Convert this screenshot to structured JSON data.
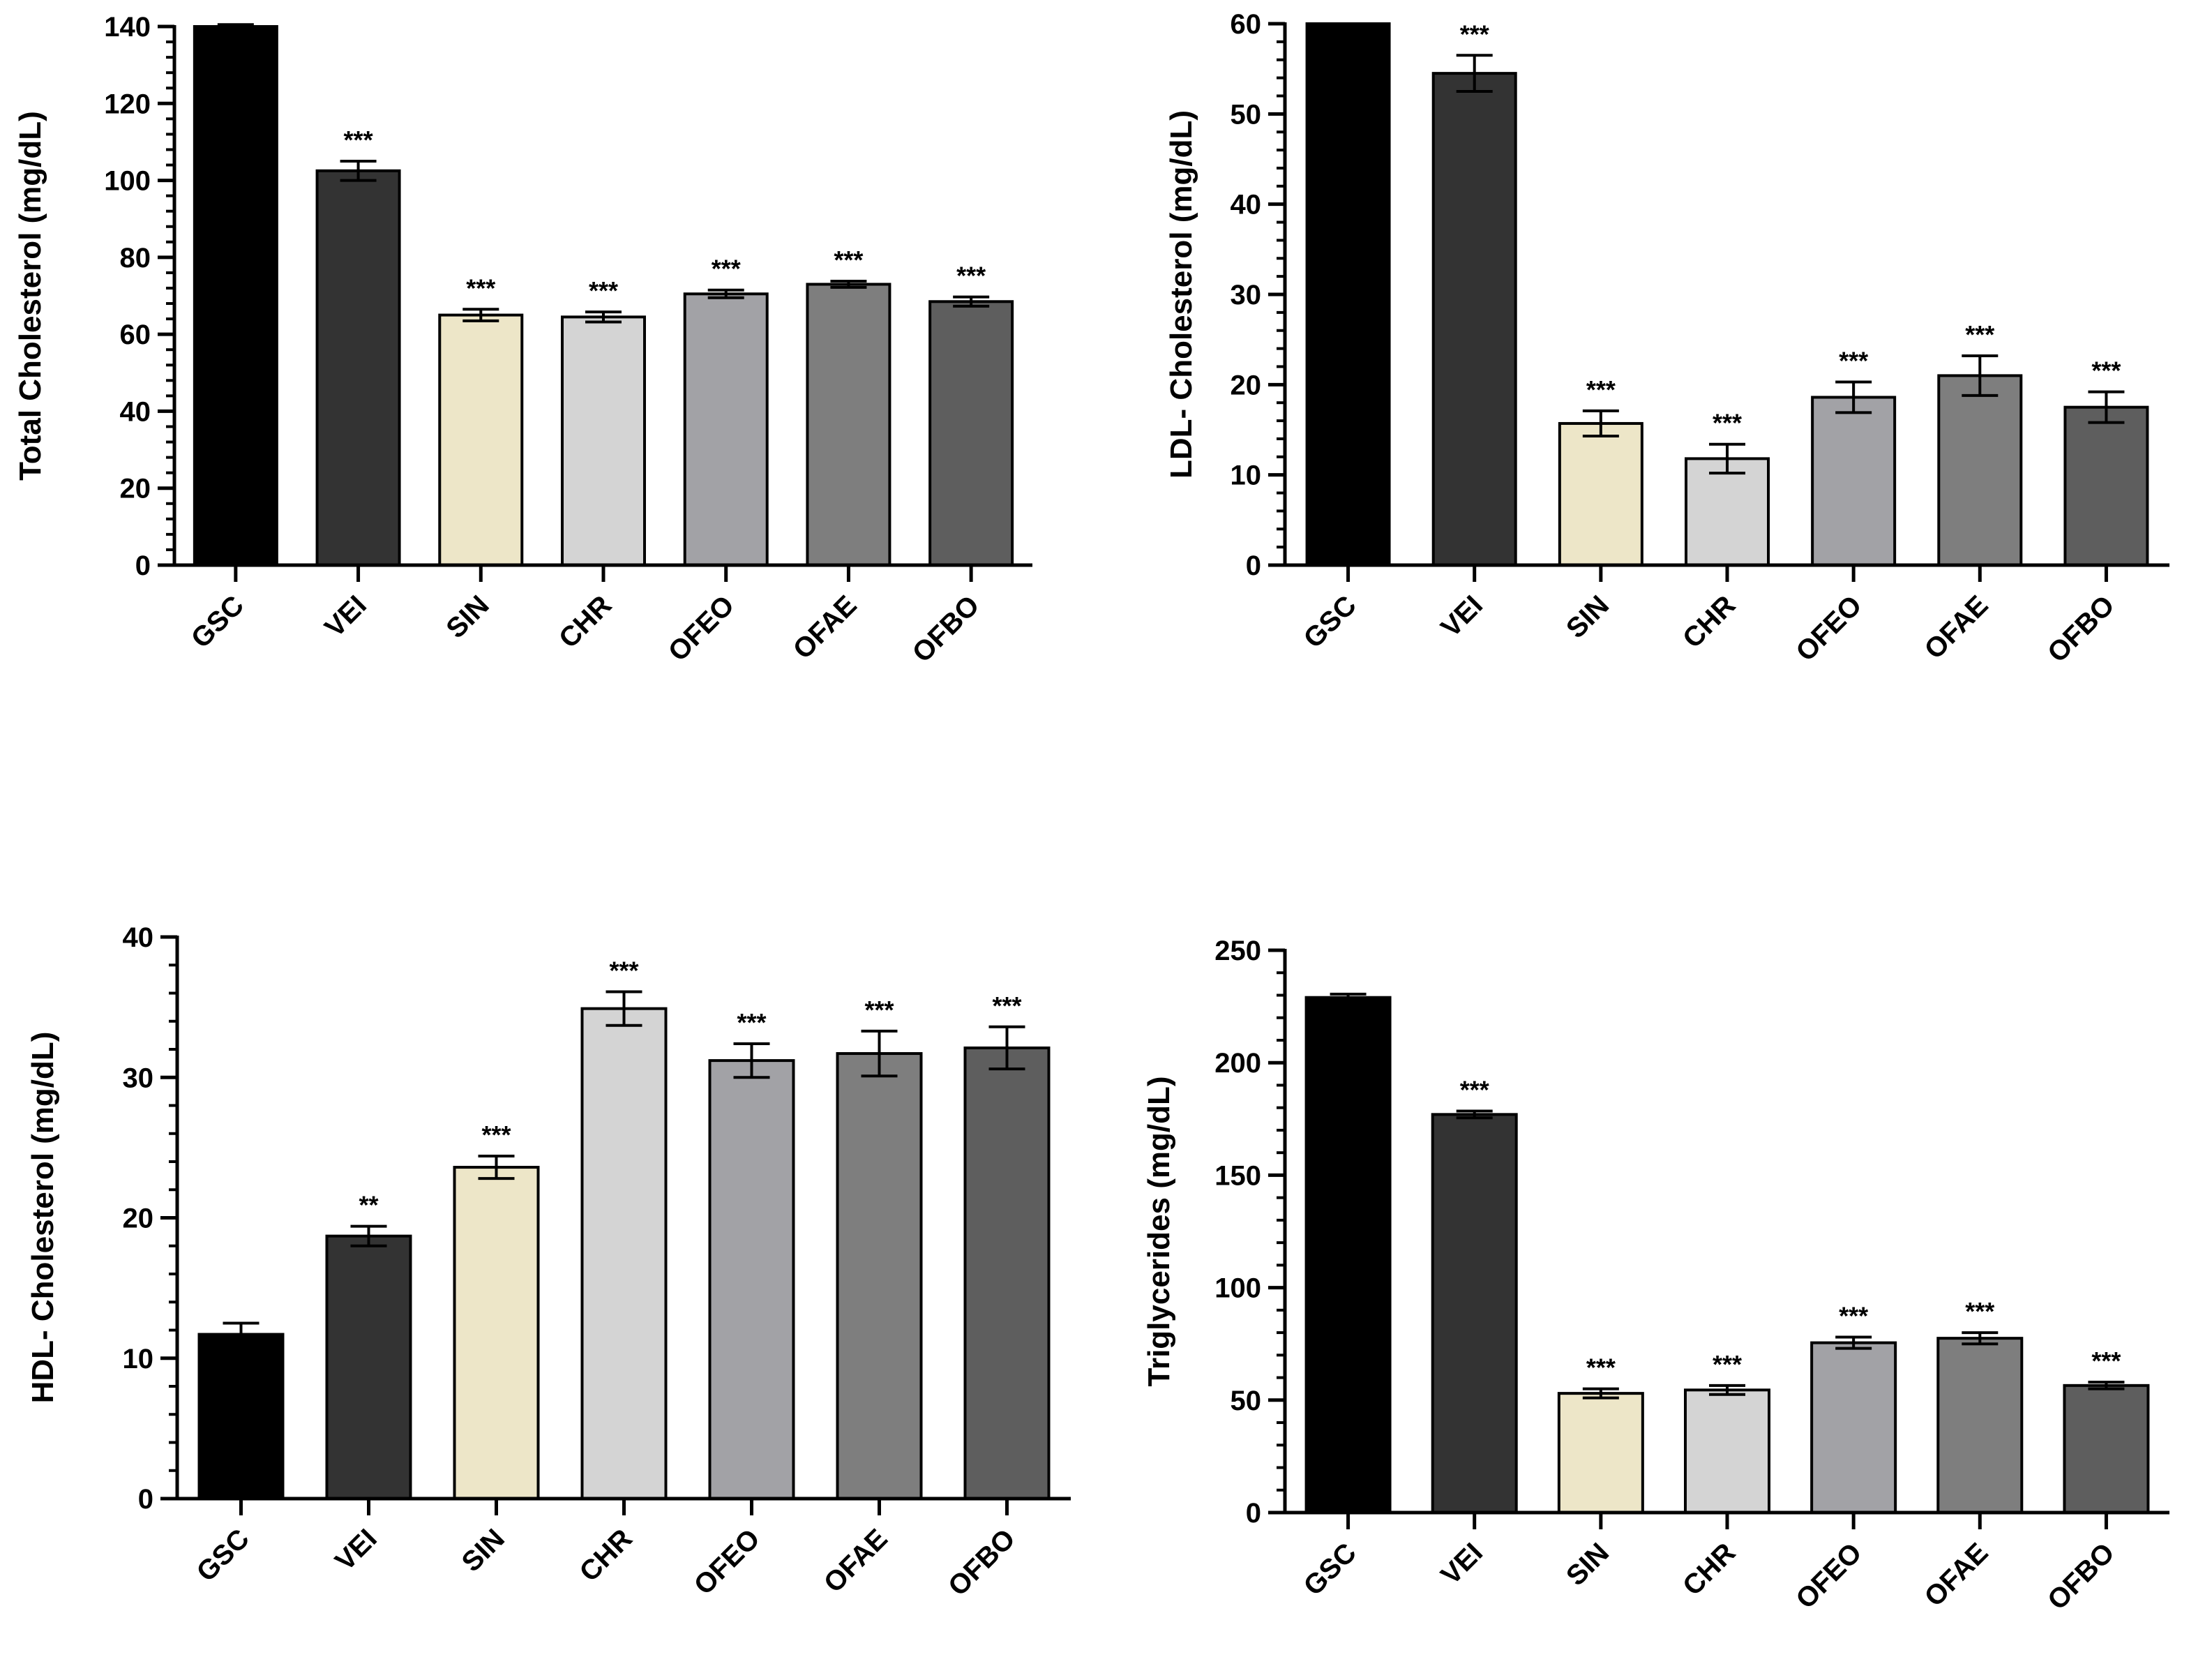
{
  "colors": {
    "GSC": "#000000",
    "VEI": "#333333",
    "SIN": "#ede6c8",
    "CHR": "#d4d4d4",
    "OFEO": "#a2a2a6",
    "OFAE": "#7e7e7e",
    "OFBO": "#5e5e5e"
  },
  "chart_data": [
    {
      "type": "bar",
      "title": "",
      "xlabel": "",
      "ylabel": "Total Cholesterol (mg/dL)",
      "ylim": [
        0,
        140
      ],
      "yticks": [
        0,
        20,
        40,
        60,
        80,
        100,
        120,
        140
      ],
      "categories": [
        "GSC",
        "VEI",
        "SIN",
        "CHR",
        "OFEO",
        "OFAE",
        "OFBO"
      ],
      "values": [
        140,
        102.5,
        65,
        64.5,
        70.5,
        73,
        68.5
      ],
      "errors": [
        0.5,
        2.5,
        1.5,
        1.3,
        1.0,
        0.8,
        1.2
      ],
      "significance": [
        "",
        "***",
        "***",
        "***",
        "***",
        "***",
        "***"
      ],
      "grid": false,
      "legend": "none"
    },
    {
      "type": "bar",
      "title": "",
      "xlabel": "",
      "ylabel": "LDL- Cholesterol (mg/dL)",
      "ylim": [
        0,
        60
      ],
      "yticks": [
        0,
        10,
        20,
        30,
        40,
        50,
        60
      ],
      "categories": [
        "GSC",
        "VEI",
        "SIN",
        "CHR",
        "OFEO",
        "OFAE",
        "OFBO"
      ],
      "values": [
        60,
        54.5,
        15.7,
        11.8,
        18.6,
        21,
        17.5
      ],
      "errors": [
        0,
        2,
        1.4,
        1.6,
        1.7,
        2.2,
        1.7
      ],
      "significance": [
        "",
        "***",
        "***",
        "***",
        "***",
        "***",
        "***"
      ],
      "grid": false,
      "legend": "none"
    },
    {
      "type": "bar",
      "title": "",
      "xlabel": "",
      "ylabel": "HDL- Cholesterol (mg/dL)",
      "ylim": [
        0,
        40
      ],
      "yticks": [
        0,
        10,
        20,
        30,
        40
      ],
      "categories": [
        "GSC",
        "VEI",
        "SIN",
        "CHR",
        "OFEO",
        "OFAE",
        "OFBO"
      ],
      "values": [
        11.7,
        18.7,
        23.6,
        34.9,
        31.2,
        31.7,
        32.1
      ],
      "errors": [
        0.8,
        0.7,
        0.8,
        1.2,
        1.2,
        1.6,
        1.5
      ],
      "significance": [
        "",
        "**",
        "***",
        "***",
        "***",
        "***",
        "***"
      ],
      "grid": false,
      "legend": "none"
    },
    {
      "type": "bar",
      "title": "",
      "xlabel": "",
      "ylabel": "Triglycerides (mg/dL)",
      "ylim": [
        0,
        250
      ],
      "yticks": [
        0,
        50,
        100,
        150,
        200,
        250
      ],
      "categories": [
        "GSC",
        "VEI",
        "SIN",
        "CHR",
        "OFEO",
        "OFAE",
        "OFBO"
      ],
      "values": [
        229,
        177,
        53,
        54.5,
        75.5,
        77.5,
        56.5
      ],
      "errors": [
        1.5,
        1.5,
        2,
        2,
        2.5,
        2.5,
        1.5
      ],
      "significance": [
        "",
        "***",
        "***",
        "***",
        "***",
        "***",
        "***"
      ],
      "grid": false,
      "legend": "none"
    }
  ]
}
